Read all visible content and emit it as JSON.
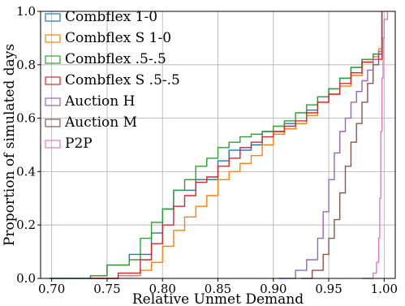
{
  "chart_data": {
    "type": "line",
    "xlabel": "Relative Unmet Demand",
    "ylabel": "Proportion of simulated days",
    "xlim": [
      0.69,
      1.01
    ],
    "ylim": [
      0.0,
      1.0
    ],
    "grid": true,
    "legend_position": "top-left",
    "x_ticks": [
      "0.70",
      "0.75",
      "0.80",
      "0.85",
      "0.90",
      "0.95",
      "1.00"
    ],
    "x_tick_values": [
      0.7,
      0.75,
      0.8,
      0.85,
      0.9,
      0.95,
      1.0
    ],
    "y_ticks": [
      "0.0",
      "0.2",
      "0.4",
      "0.6",
      "0.8",
      "1.0"
    ],
    "y_tick_values": [
      0.0,
      0.2,
      0.4,
      0.6,
      0.8,
      1.0
    ],
    "series": [
      {
        "name": "Combflex 1-0",
        "color": "#1f77b4",
        "x": [
          0.698,
          0.735,
          0.75,
          0.77,
          0.79,
          0.8,
          0.81,
          0.83,
          0.85,
          0.86,
          0.88,
          0.89,
          0.91,
          0.93,
          0.94,
          0.95,
          0.96,
          0.97,
          0.98,
          0.99,
          0.998
        ],
        "y": [
          0.0,
          0.01,
          0.05,
          0.09,
          0.17,
          0.26,
          0.33,
          0.37,
          0.44,
          0.48,
          0.5,
          0.55,
          0.58,
          0.63,
          0.68,
          0.71,
          0.75,
          0.79,
          0.82,
          0.84,
          1.0
        ]
      },
      {
        "name": "Combflex S 1-0",
        "color": "#ff7f0e",
        "x": [
          0.735,
          0.76,
          0.78,
          0.79,
          0.8,
          0.81,
          0.82,
          0.83,
          0.84,
          0.85,
          0.86,
          0.87,
          0.88,
          0.89,
          0.9,
          0.91,
          0.92,
          0.93,
          0.94,
          0.95,
          0.96,
          0.97,
          0.98,
          0.99,
          0.995,
          0.998
        ],
        "y": [
          0.0,
          0.01,
          0.03,
          0.06,
          0.12,
          0.18,
          0.23,
          0.27,
          0.31,
          0.37,
          0.4,
          0.43,
          0.46,
          0.5,
          0.54,
          0.56,
          0.58,
          0.61,
          0.66,
          0.69,
          0.72,
          0.76,
          0.81,
          0.83,
          0.86,
          1.0
        ]
      },
      {
        "name": "Combflex .5-.5",
        "color": "#2ca02c",
        "x": [
          0.698,
          0.735,
          0.75,
          0.77,
          0.78,
          0.79,
          0.8,
          0.81,
          0.82,
          0.83,
          0.84,
          0.85,
          0.86,
          0.87,
          0.88,
          0.89,
          0.9,
          0.91,
          0.92,
          0.93,
          0.94,
          0.95,
          0.96,
          0.97,
          0.98,
          0.99,
          0.998
        ],
        "y": [
          0.0,
          0.01,
          0.05,
          0.07,
          0.15,
          0.21,
          0.26,
          0.33,
          0.37,
          0.42,
          0.45,
          0.49,
          0.51,
          0.53,
          0.54,
          0.55,
          0.57,
          0.59,
          0.62,
          0.65,
          0.68,
          0.71,
          0.75,
          0.79,
          0.82,
          0.84,
          1.0
        ]
      },
      {
        "name": "Combflex S .5-.5",
        "color": "#d62728",
        "x": [
          0.735,
          0.76,
          0.78,
          0.79,
          0.8,
          0.81,
          0.82,
          0.83,
          0.84,
          0.85,
          0.86,
          0.87,
          0.88,
          0.89,
          0.9,
          0.91,
          0.92,
          0.93,
          0.94,
          0.95,
          0.96,
          0.97,
          0.98,
          0.99,
          0.998
        ],
        "y": [
          0.0,
          0.02,
          0.07,
          0.13,
          0.2,
          0.27,
          0.31,
          0.36,
          0.38,
          0.42,
          0.45,
          0.49,
          0.51,
          0.53,
          0.55,
          0.57,
          0.59,
          0.62,
          0.66,
          0.69,
          0.73,
          0.77,
          0.81,
          0.82,
          1.0
        ]
      },
      {
        "name": "Auction H",
        "color": "#9467bd",
        "x": [
          0.905,
          0.92,
          0.93,
          0.94,
          0.945,
          0.95,
          0.955,
          0.96,
          0.965,
          0.97,
          0.975,
          0.98,
          0.985,
          0.99,
          0.995,
          0.998
        ],
        "y": [
          0.0,
          0.03,
          0.07,
          0.15,
          0.25,
          0.37,
          0.47,
          0.55,
          0.6,
          0.66,
          0.7,
          0.74,
          0.78,
          0.82,
          0.85,
          1.0
        ]
      },
      {
        "name": "Auction M",
        "color": "#8c564b",
        "x": [
          0.925,
          0.935,
          0.945,
          0.95,
          0.955,
          0.96,
          0.965,
          0.97,
          0.975,
          0.98,
          0.985,
          0.99,
          0.995,
          0.998
        ],
        "y": [
          0.0,
          0.03,
          0.09,
          0.15,
          0.22,
          0.32,
          0.42,
          0.51,
          0.58,
          0.66,
          0.73,
          0.8,
          0.84,
          1.0
        ]
      },
      {
        "name": "P2P",
        "color": "#e377c2",
        "x": [
          0.98,
          0.99,
          0.993,
          0.995,
          0.996,
          0.997,
          0.998,
          0.999,
          1.0,
          1.003
        ],
        "y": [
          0.0,
          0.02,
          0.06,
          0.15,
          0.3,
          0.55,
          0.75,
          0.9,
          0.97,
          1.0
        ]
      }
    ]
  }
}
